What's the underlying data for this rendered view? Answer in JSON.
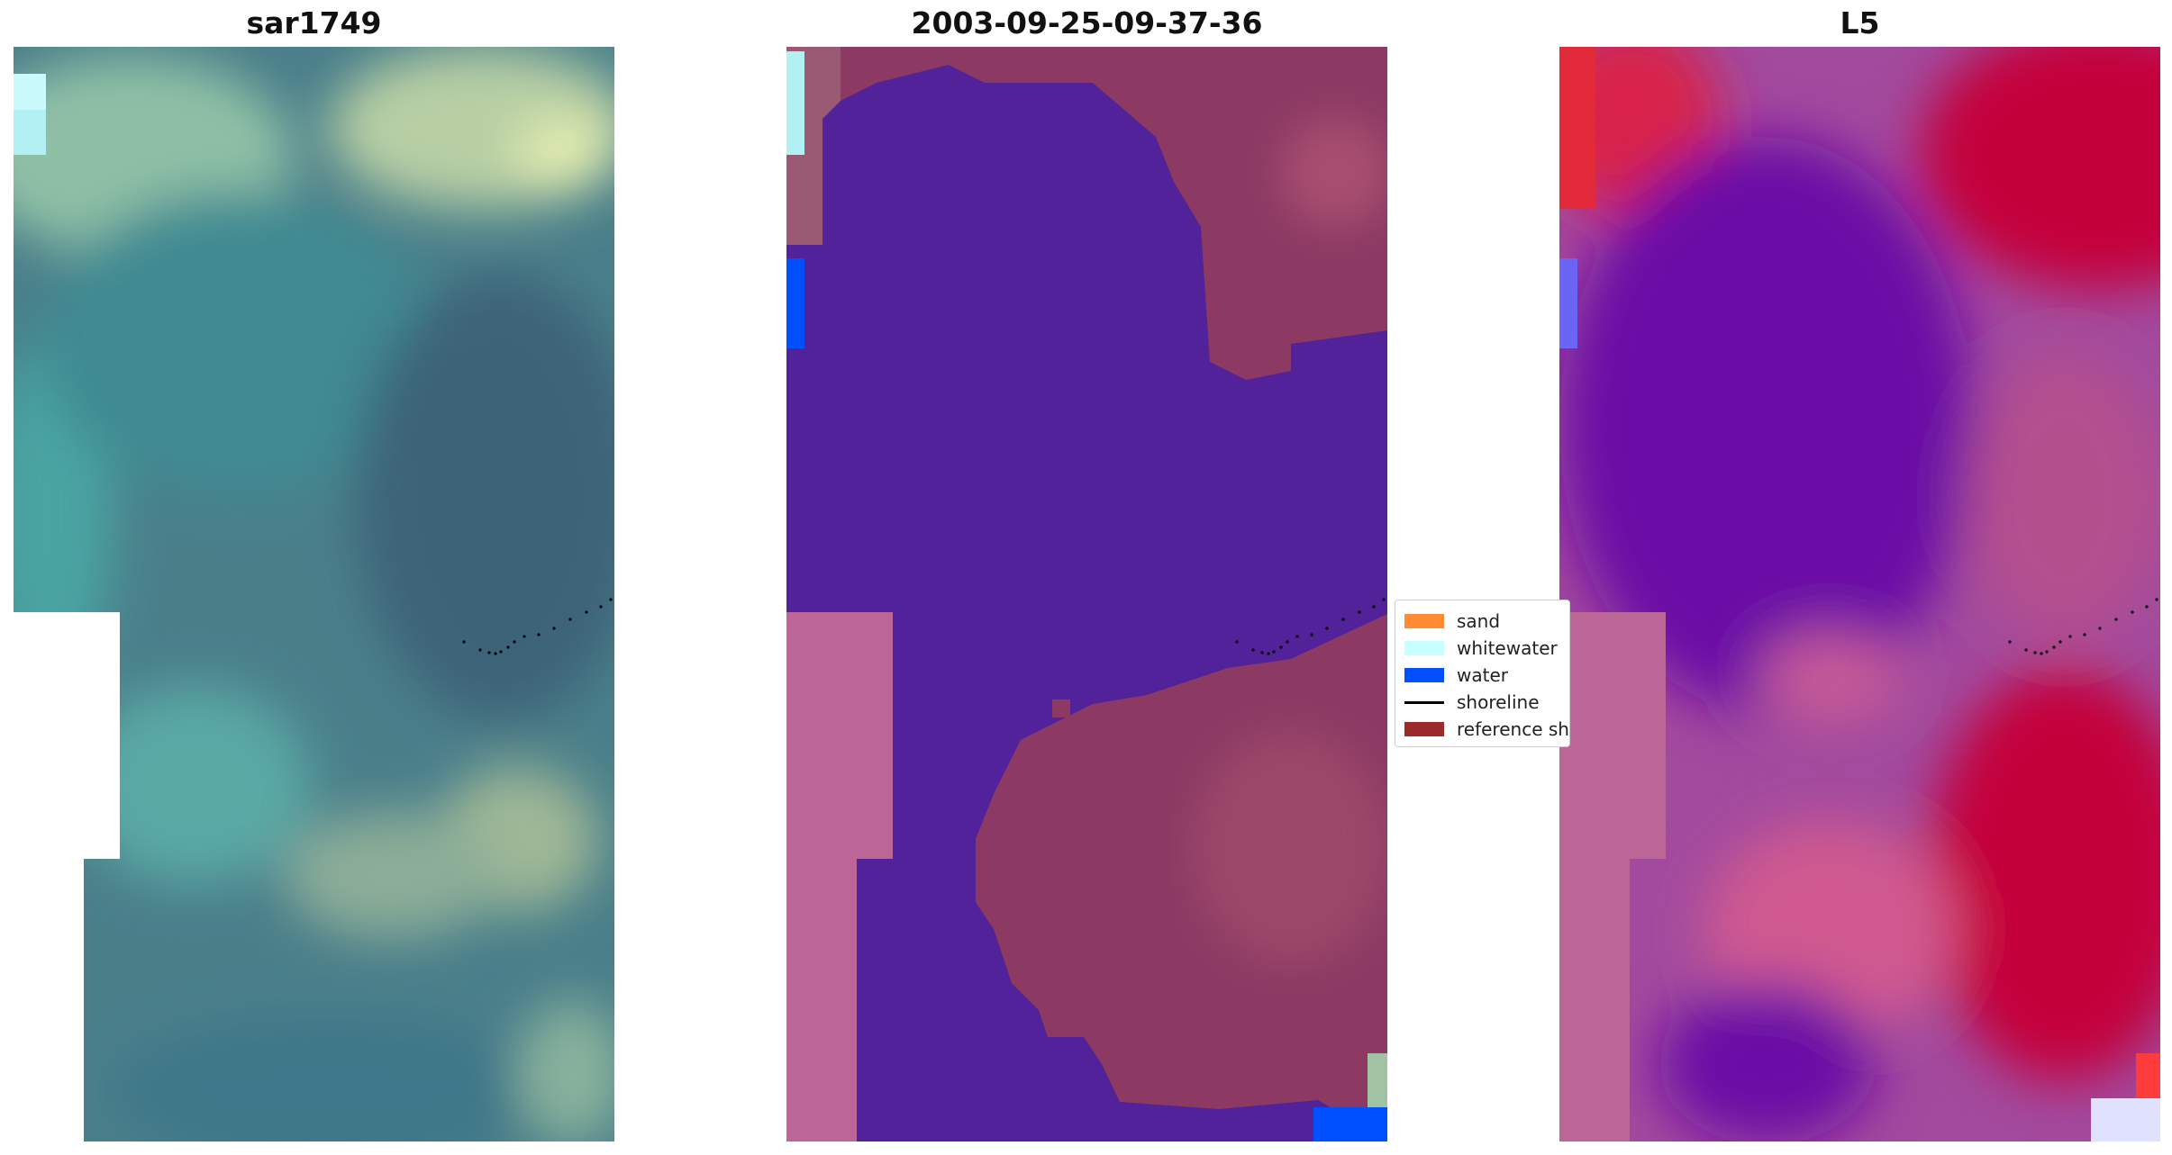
{
  "panels": [
    {
      "title": "sar1749"
    },
    {
      "title": "2003-09-25-09-37-36"
    },
    {
      "title": "L5"
    }
  ],
  "legend": {
    "items": [
      {
        "label": "sand",
        "color": "#ff8c32",
        "kind": "patch"
      },
      {
        "label": "whitewater",
        "color": "#c8ffff",
        "kind": "patch"
      },
      {
        "label": "water",
        "color": "#0050ff",
        "kind": "patch"
      },
      {
        "label": "shoreline",
        "color": "#000000",
        "kind": "line"
      },
      {
        "label": "reference shoreline buffer",
        "color": "#9b2b2b",
        "kind": "patch"
      }
    ]
  },
  "colors": {
    "class_water_overlay": "#52229a",
    "class_sand_overlay": "#8c3a64",
    "masked_area": "#bb6696",
    "index_low": "#6a0aa6",
    "index_high": "#c4003a"
  }
}
